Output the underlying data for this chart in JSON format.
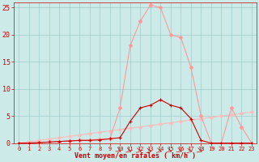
{
  "x": [
    0,
    1,
    2,
    3,
    4,
    5,
    6,
    7,
    8,
    9,
    10,
    11,
    12,
    13,
    14,
    15,
    16,
    17,
    18,
    19,
    20,
    21,
    22,
    23
  ],
  "rafales": [
    0,
    0,
    0.1,
    0.2,
    0.3,
    0.4,
    0.5,
    0.6,
    0.7,
    0.8,
    6.5,
    18.0,
    22.5,
    25.5,
    25.0,
    20.0,
    19.5,
    14.0,
    5.0,
    0.0,
    0.0,
    6.5,
    3.0,
    0.0
  ],
  "vent_moyen": [
    0,
    0,
    0.1,
    0.2,
    0.3,
    0.4,
    0.5,
    0.5,
    0.6,
    0.8,
    1.0,
    4.0,
    6.5,
    7.0,
    8.0,
    7.0,
    6.5,
    4.5,
    0.5,
    0.0,
    0.0,
    0.0,
    0.0,
    0.0
  ],
  "diag": [
    0,
    0.25,
    0.5,
    0.75,
    1.0,
    1.25,
    1.5,
    1.75,
    2.0,
    2.25,
    2.5,
    2.75,
    3.0,
    3.25,
    3.5,
    3.75,
    4.0,
    4.25,
    4.5,
    4.75,
    5.0,
    5.25,
    5.5,
    5.75
  ],
  "xlabel": "Vent moyen/en rafales ( km/h )",
  "ylim": [
    0,
    26
  ],
  "xlim": [
    -0.5,
    23.5
  ],
  "yticks": [
    0,
    5,
    10,
    15,
    20,
    25
  ],
  "xticks": [
    0,
    1,
    2,
    3,
    4,
    5,
    6,
    7,
    8,
    9,
    10,
    11,
    12,
    13,
    14,
    15,
    16,
    17,
    18,
    19,
    20,
    21,
    22,
    23
  ],
  "bg_color": "#cceae8",
  "grid_color": "#a0cccc",
  "color_rafales": "#ff9999",
  "color_vent": "#cc0000",
  "color_diag": "#ffbbbb",
  "tick_fontsize": 5,
  "xlabel_fontsize": 6,
  "marker_size": 2.0,
  "linewidth": 0.8
}
